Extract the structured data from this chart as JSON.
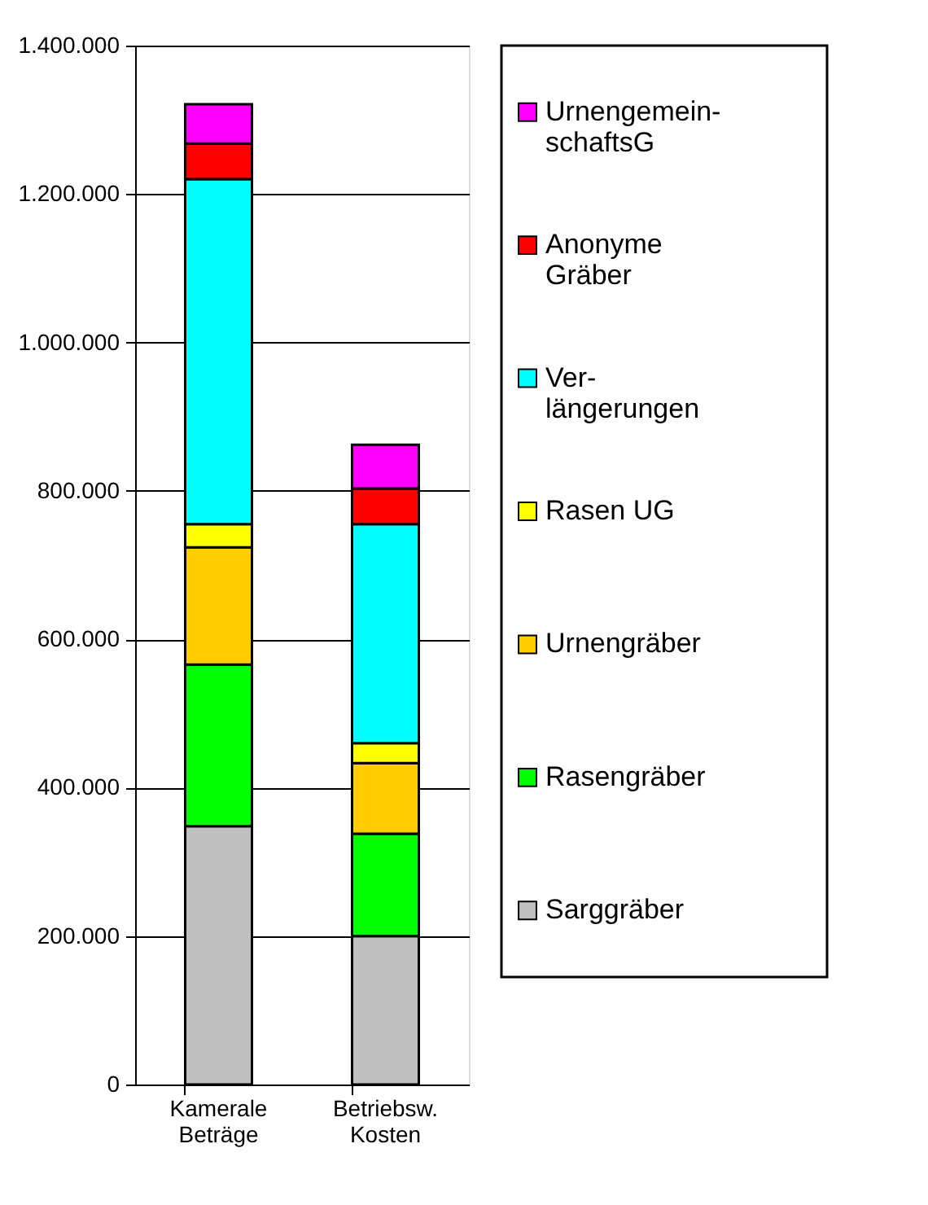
{
  "chart_data": {
    "type": "bar",
    "stacked": true,
    "categories": [
      "Kamerale Beträge",
      "Betriebsw. Kosten"
    ],
    "series": [
      {
        "name": "Sarggräber",
        "color": "#c0c0c0",
        "values": [
          348000,
          200000
        ]
      },
      {
        "name": "Rasengräber",
        "color": "#00ff00",
        "values": [
          218000,
          138000
        ]
      },
      {
        "name": "Urnengräber",
        "color": "#ffcc00",
        "values": [
          158000,
          95000
        ]
      },
      {
        "name": "Rasen UG",
        "color": "#ffff00",
        "values": [
          31000,
          27000
        ]
      },
      {
        "name": "Ver-längerungen",
        "color": "#00ffff",
        "values": [
          465000,
          295000
        ]
      },
      {
        "name": "Anonyme Gräber",
        "color": "#ff0000",
        "values": [
          48000,
          48000
        ]
      },
      {
        "name": "Urnengemein-schaftsG",
        "color": "#ff00ff",
        "values": [
          53000,
          59000
        ]
      }
    ],
    "ylim": [
      0,
      1400000
    ],
    "yticks": [
      {
        "value": 0,
        "label": "0"
      },
      {
        "value": 200000,
        "label": "200.000"
      },
      {
        "value": 400000,
        "label": "400.000"
      },
      {
        "value": 600000,
        "label": "600.000"
      },
      {
        "value": 800000,
        "label": "800.000"
      },
      {
        "value": 1000000,
        "label": "1.000.000"
      },
      {
        "value": 1200000,
        "label": "1.200.000"
      },
      {
        "value": 1400000,
        "label": "1.400.000"
      }
    ],
    "grid": "y",
    "legend": "right"
  }
}
